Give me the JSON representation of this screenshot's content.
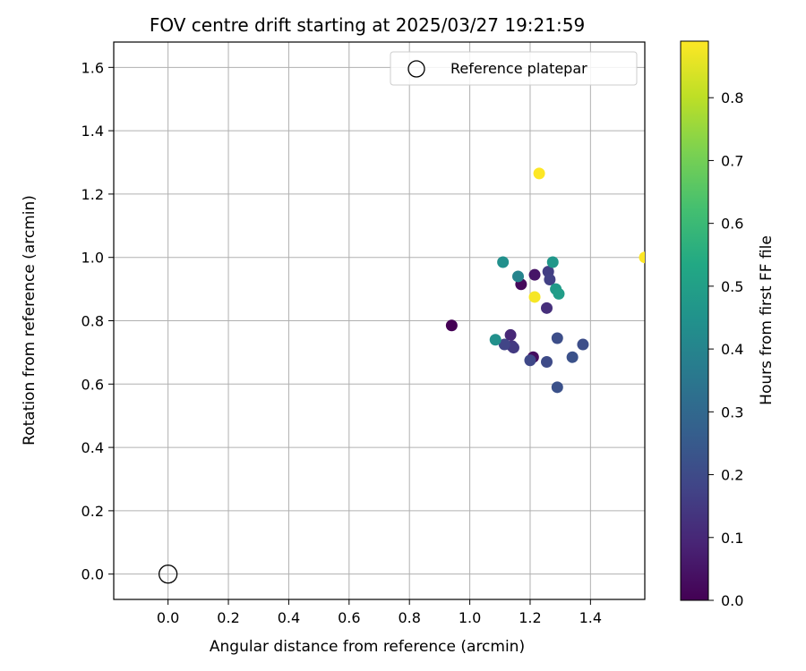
{
  "chart_data": {
    "type": "scatter",
    "title": "FOV centre drift starting at 2025/03/27 19:21:59",
    "xlabel": "Angular distance from reference (arcmin)",
    "ylabel": "Rotation from reference (arcmin)",
    "xlim": [
      -0.18,
      1.58
    ],
    "ylim": [
      -0.08,
      1.68
    ],
    "xticks": [
      0.0,
      0.2,
      0.4,
      0.6,
      0.8,
      1.0,
      1.2,
      1.4
    ],
    "xtick_labels": [
      "0.0",
      "0.2",
      "0.4",
      "0.6",
      "0.8",
      "1.0",
      "1.2",
      "1.4"
    ],
    "yticks": [
      0.0,
      0.2,
      0.4,
      0.6,
      0.8,
      1.0,
      1.2,
      1.4,
      1.6
    ],
    "ytick_labels": [
      "0.0",
      "0.2",
      "0.4",
      "0.6",
      "0.8",
      "1.0",
      "1.2",
      "1.4",
      "1.6"
    ],
    "grid": true,
    "legend": {
      "placement": "top-right",
      "entries": [
        "Reference platepar"
      ]
    },
    "reference_point": {
      "x": 0.0,
      "y": 0.0,
      "label": "Reference platepar"
    },
    "colorbar": {
      "label": "Hours from first FF file",
      "colormap": "viridis",
      "range": [
        0.0,
        0.89
      ],
      "ticks": [
        0.0,
        0.1,
        0.2,
        0.3,
        0.4,
        0.5,
        0.6,
        0.7,
        0.8
      ],
      "tick_labels": [
        "0.0",
        "0.1",
        "0.2",
        "0.3",
        "0.4",
        "0.5",
        "0.6",
        "0.7",
        "0.8"
      ]
    },
    "points": [
      {
        "x": 0.94,
        "y": 0.785,
        "c": 0.0
      },
      {
        "x": 1.17,
        "y": 0.915,
        "c": 0.02
      },
      {
        "x": 1.21,
        "y": 0.685,
        "c": 0.03
      },
      {
        "x": 1.215,
        "y": 0.945,
        "c": 0.05
      },
      {
        "x": 1.135,
        "y": 0.755,
        "c": 0.1
      },
      {
        "x": 1.255,
        "y": 0.84,
        "c": 0.12
      },
      {
        "x": 1.14,
        "y": 0.72,
        "c": 0.14
      },
      {
        "x": 1.145,
        "y": 0.715,
        "c": 0.15
      },
      {
        "x": 1.26,
        "y": 0.955,
        "c": 0.16
      },
      {
        "x": 1.265,
        "y": 0.93,
        "c": 0.17
      },
      {
        "x": 1.115,
        "y": 0.725,
        "c": 0.18
      },
      {
        "x": 1.2,
        "y": 0.675,
        "c": 0.19
      },
      {
        "x": 1.255,
        "y": 0.67,
        "c": 0.2
      },
      {
        "x": 1.29,
        "y": 0.745,
        "c": 0.21
      },
      {
        "x": 1.375,
        "y": 0.725,
        "c": 0.21
      },
      {
        "x": 1.34,
        "y": 0.685,
        "c": 0.22
      },
      {
        "x": 1.29,
        "y": 0.59,
        "c": 0.22
      },
      {
        "x": 1.16,
        "y": 0.94,
        "c": 0.4
      },
      {
        "x": 1.085,
        "y": 0.74,
        "c": 0.44
      },
      {
        "x": 1.11,
        "y": 0.985,
        "c": 0.44
      },
      {
        "x": 1.275,
        "y": 0.985,
        "c": 0.47
      },
      {
        "x": 1.285,
        "y": 0.9,
        "c": 0.48
      },
      {
        "x": 1.295,
        "y": 0.885,
        "c": 0.49
      },
      {
        "x": 1.215,
        "y": 0.875,
        "c": 0.88
      },
      {
        "x": 1.23,
        "y": 1.265,
        "c": 0.89
      },
      {
        "x": 1.58,
        "y": 1.0,
        "c": 0.89
      }
    ]
  }
}
